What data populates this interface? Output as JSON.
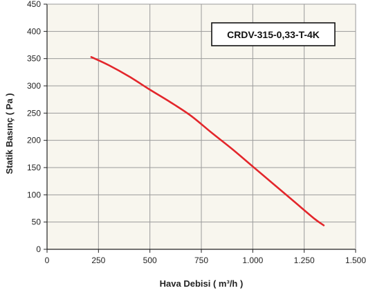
{
  "chart_data": {
    "type": "line",
    "title": "",
    "xlabel": "Hava Debisi ( m³/h )",
    "ylabel": "Statik Basınç ( Pa )",
    "xlim": [
      0,
      1500
    ],
    "ylim": [
      0,
      450
    ],
    "x_ticks": [
      0,
      250,
      500,
      750,
      1000,
      1250,
      1500
    ],
    "x_tick_labels": [
      "0",
      "250",
      "500",
      "750",
      "1.000",
      "1.250",
      "1.500"
    ],
    "y_ticks": [
      0,
      50,
      100,
      150,
      200,
      250,
      300,
      350,
      400,
      450
    ],
    "y_tick_labels": [
      "0",
      "50",
      "100",
      "150",
      "200",
      "250",
      "300",
      "350",
      "400",
      "450"
    ],
    "grid": true,
    "background_color": "#f8f6ee",
    "grid_color": "#9a9a9a",
    "series": [
      {
        "color": "#e3262b",
        "x": [
          215,
          300,
          400,
          500,
          600,
          700,
          800,
          900,
          1000,
          1100,
          1200,
          1300,
          1345
        ],
        "y": [
          353,
          338,
          317,
          293,
          270,
          245,
          214,
          184,
          152,
          120,
          88,
          56,
          44
        ]
      }
    ],
    "annotation": {
      "text": "CRDV-315-0,33-T-4K",
      "position": "top-right"
    }
  }
}
